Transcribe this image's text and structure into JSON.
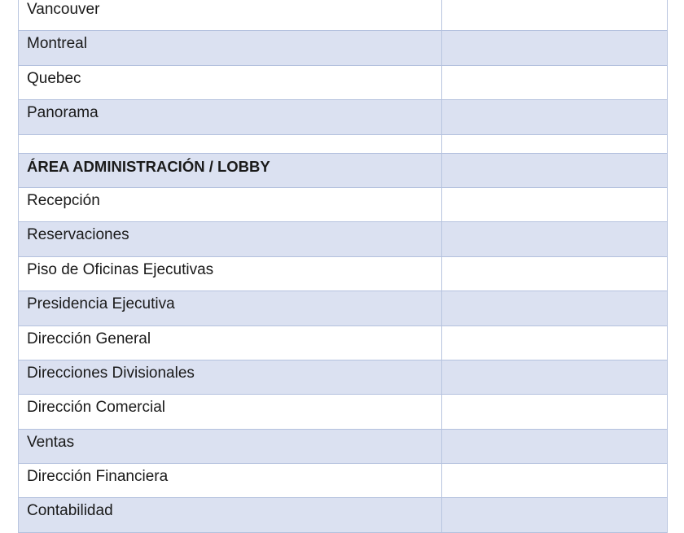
{
  "colors": {
    "shade": "#dbe1f1",
    "border": "#b4c1de"
  },
  "rows": [
    {
      "label": "Vancouver",
      "value": "",
      "shade": false
    },
    {
      "label": "Montreal",
      "value": "",
      "shade": true
    },
    {
      "label": "Quebec",
      "value": "",
      "shade": false
    },
    {
      "label": "Panorama",
      "value": "",
      "shade": true
    },
    {
      "label": "",
      "value": "",
      "shade": false,
      "empty": true
    },
    {
      "label": "ÁREA ADMINISTRACIÓN / LOBBY",
      "value": "",
      "shade": true,
      "bold": true
    },
    {
      "label": "Recepción",
      "value": "",
      "shade": false
    },
    {
      "label": "Reservaciones",
      "value": "",
      "shade": true
    },
    {
      "label": "Piso de Oficinas Ejecutivas",
      "value": "",
      "shade": false
    },
    {
      "label": "Presidencia Ejecutiva",
      "value": "",
      "shade": true
    },
    {
      "label": "Dirección General",
      "value": "",
      "shade": false
    },
    {
      "label": "Direcciones Divisionales",
      "value": "",
      "shade": true
    },
    {
      "label": "Dirección Comercial",
      "value": "",
      "shade": false
    },
    {
      "label": "Ventas",
      "value": "",
      "shade": true
    },
    {
      "label": "Dirección Financiera",
      "value": "",
      "shade": false
    },
    {
      "label": "Contabilidad",
      "value": "",
      "shade": true
    }
  ]
}
